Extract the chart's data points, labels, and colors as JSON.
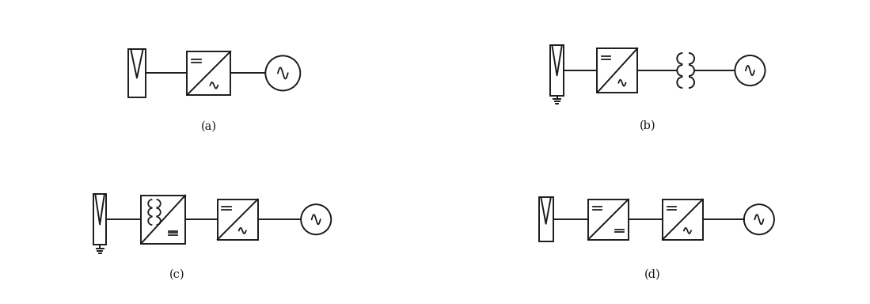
{
  "bg_color": "#ffffff",
  "line_color": "#1a1a1a",
  "line_width": 1.4,
  "label_a": "(a)",
  "label_b": "(b)",
  "label_c": "(c)",
  "label_d": "(d)",
  "label_fontsize": 10.5,
  "fig_width": 10.99,
  "fig_height": 3.84,
  "dpi": 100
}
